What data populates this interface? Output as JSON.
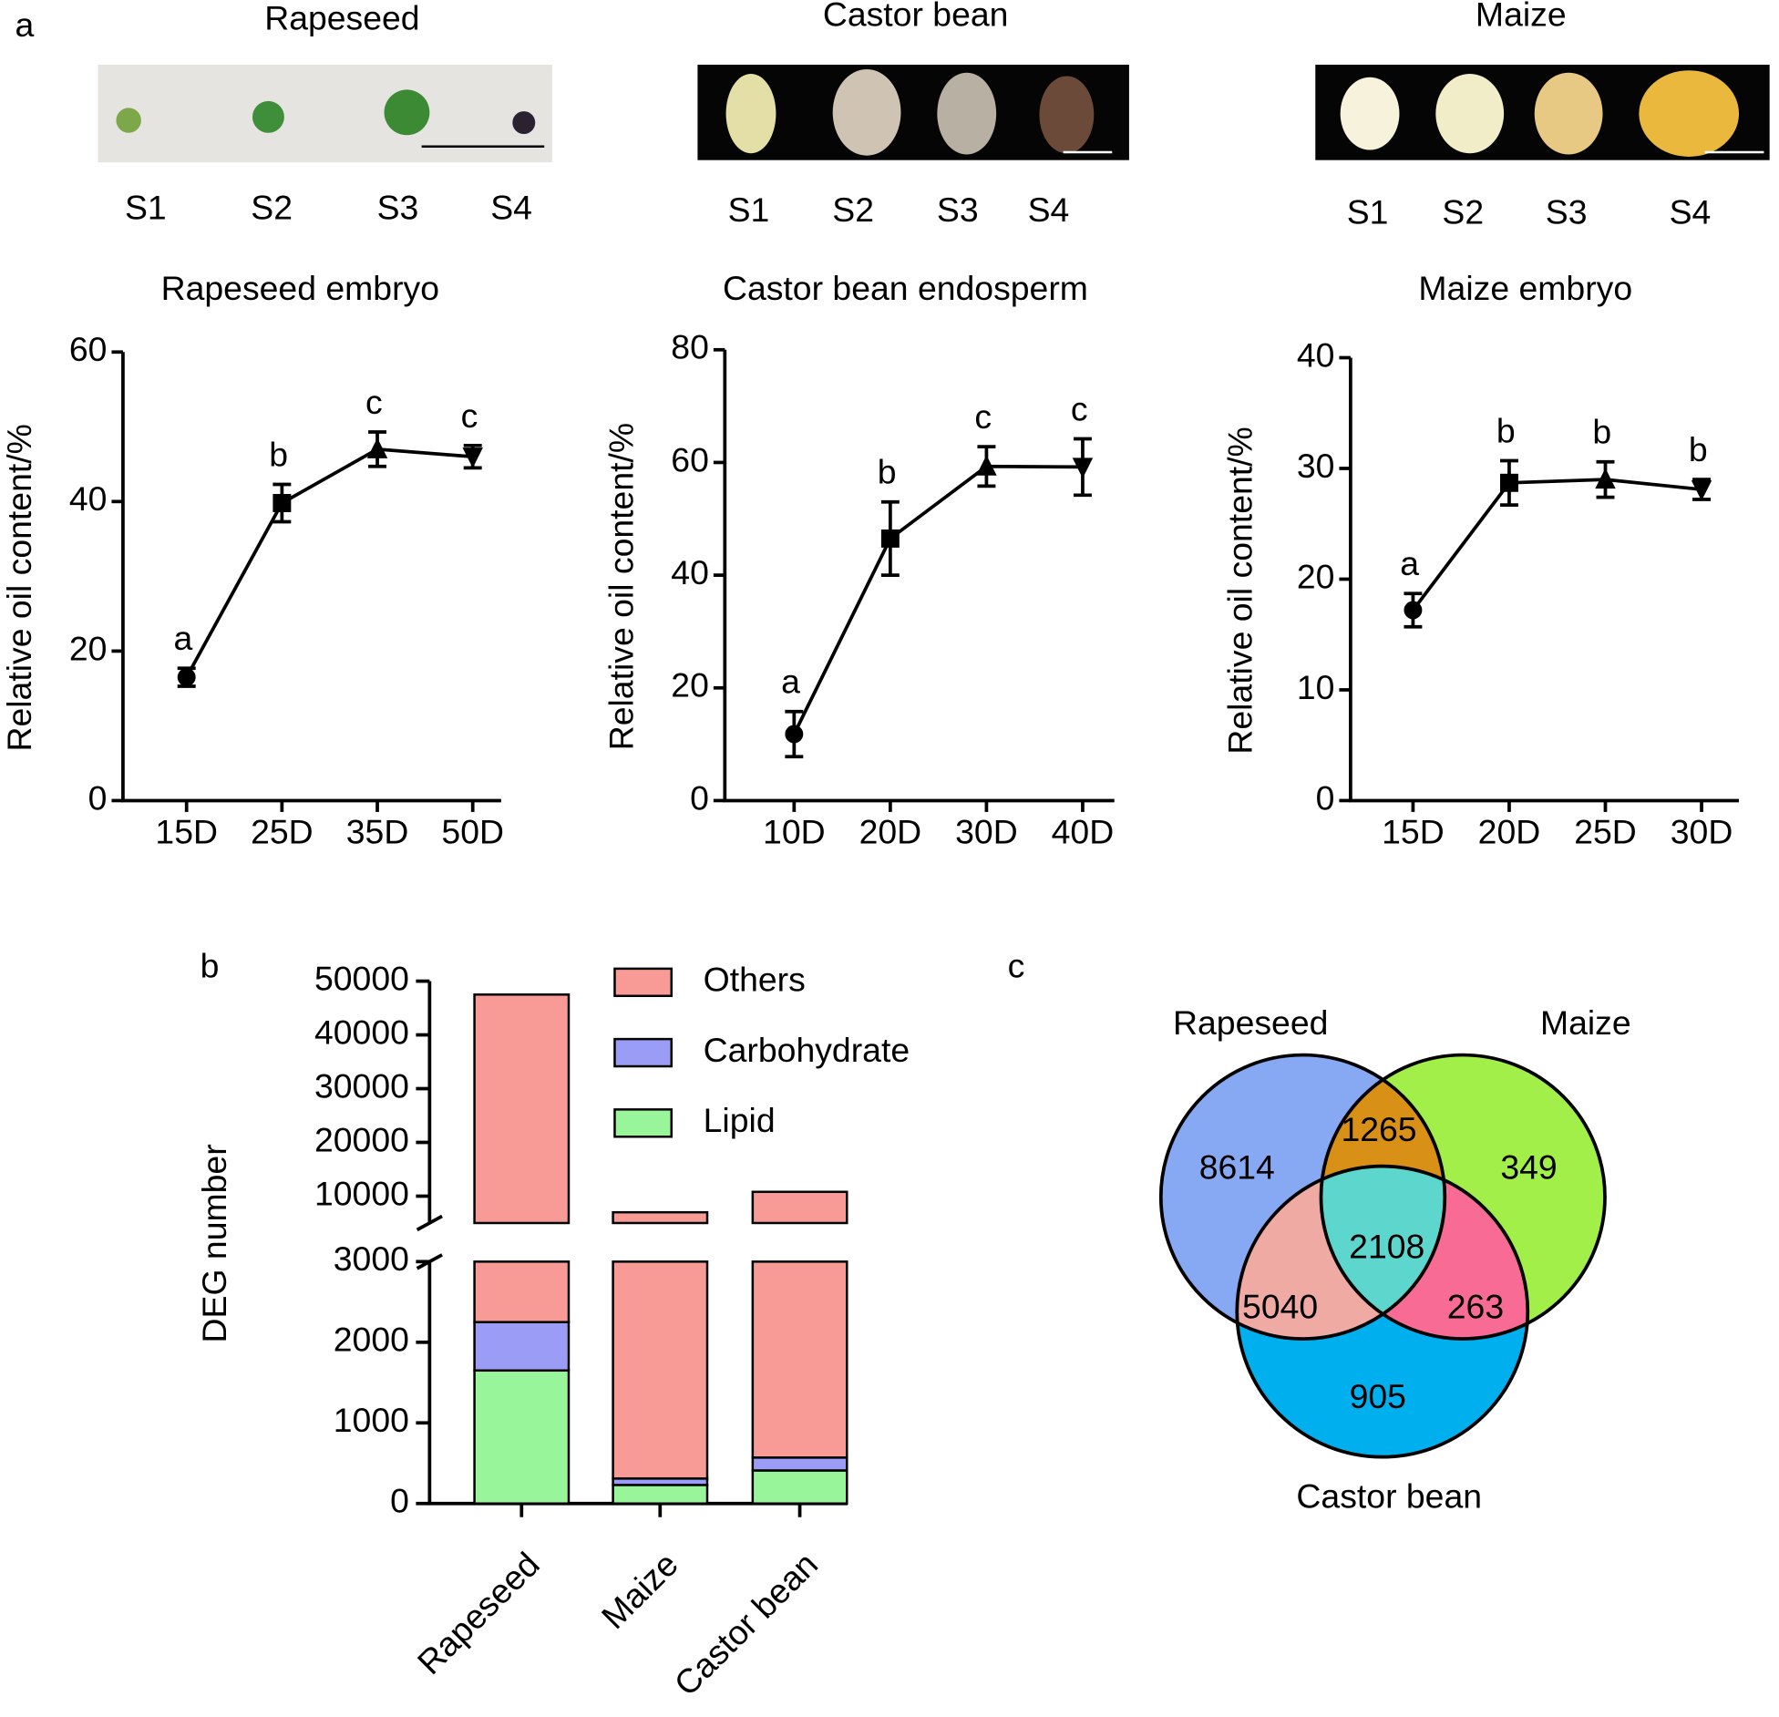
{
  "panel_labels": [
    "a",
    "b",
    "c"
  ],
  "photos": [
    {
      "title": "Rapeseed",
      "stages": [
        "S1",
        "S2",
        "S3",
        "S4"
      ]
    },
    {
      "title": "Castor bean",
      "stages": [
        "S1",
        "S2",
        "S3",
        "S4"
      ]
    },
    {
      "title": "Maize",
      "stages": [
        "S1",
        "S2",
        "S3",
        "S4"
      ]
    }
  ],
  "chart_data": [
    {
      "type": "line",
      "title": "Rapeseed embryo",
      "ylabel": "Relative oil content/%",
      "categories": [
        "15D",
        "25D",
        "35D",
        "50D"
      ],
      "values": [
        16.5,
        39.8,
        47,
        46
      ],
      "errors": [
        1.2,
        2.5,
        2.3,
        1.5
      ],
      "annotations": [
        "a",
        "b",
        "c",
        "c"
      ],
      "markers": [
        "circle",
        "square",
        "triangle-up",
        "triangle-down"
      ],
      "color": "#000000",
      "ylim": [
        0,
        60
      ],
      "yticks": [
        0,
        20,
        40,
        60
      ]
    },
    {
      "type": "line",
      "title": "Castor bean endosperm",
      "ylabel": "Relative oil content/%",
      "categories": [
        "10D",
        "20D",
        "30D",
        "40D"
      ],
      "values": [
        11.8,
        46.5,
        59.3,
        59.2
      ],
      "errors": [
        4,
        6.5,
        3.5,
        5
      ],
      "annotations": [
        "a",
        "b",
        "c",
        "c"
      ],
      "markers": [
        "circle",
        "square",
        "triangle-up",
        "triangle-down"
      ],
      "color": "#000000",
      "ylim": [
        0,
        80
      ],
      "yticks": [
        0,
        20,
        40,
        60,
        80
      ]
    },
    {
      "type": "line",
      "title": "Maize embryo",
      "ylabel": "Relative oil content/%",
      "categories": [
        "15D",
        "20D",
        "25D",
        "30D"
      ],
      "values": [
        17.2,
        28.7,
        29,
        28.1
      ],
      "errors": [
        1.5,
        2,
        1.6,
        0.9
      ],
      "annotations": [
        "a",
        "b",
        "b",
        "b"
      ],
      "markers": [
        "circle",
        "square",
        "triangle-up",
        "triangle-down"
      ],
      "color": "#000000",
      "ylim": [
        0,
        40
      ],
      "yticks": [
        0,
        10,
        20,
        30,
        40
      ]
    },
    {
      "type": "bar",
      "stacked": true,
      "ylabel": "DEG number",
      "categories": [
        "Rapeseed",
        "Maize",
        "Castor bean"
      ],
      "series": [
        {
          "name": "Lipid",
          "color": "#98f59a",
          "values": [
            1650,
            230,
            410
          ]
        },
        {
          "name": "Carbohydrate",
          "color": "#9b9cf5",
          "values": [
            600,
            80,
            160
          ]
        },
        {
          "name": "Others",
          "color": "#f89a96",
          "values": [
            45250,
            6690,
            10230
          ]
        }
      ],
      "ylim": [
        0,
        50000
      ],
      "ybreak": [
        3000,
        5000
      ],
      "yticks": [
        0,
        1000,
        2000,
        3000,
        10000,
        20000,
        30000,
        40000,
        50000
      ],
      "legend": "top-right"
    },
    {
      "type": "venn",
      "sets": [
        "Rapeseed",
        "Maize",
        "Castor bean"
      ],
      "values": [
        8614,
        349,
        905,
        1265,
        5040,
        263,
        2108
      ],
      "colors": [
        "#87a8f2",
        "#a3ef4a",
        "#00b0ee",
        "#d99016",
        "#efaaa4",
        "#f76b94",
        "#5dd6cd"
      ]
    }
  ]
}
